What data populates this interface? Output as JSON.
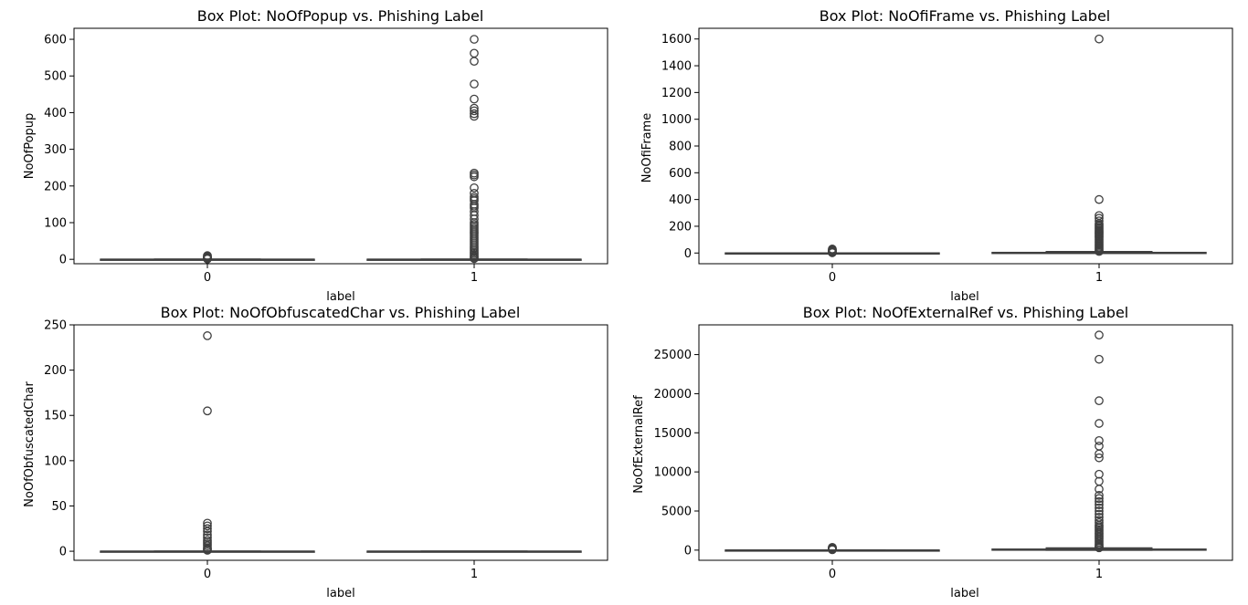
{
  "chart_data": [
    {
      "type": "box",
      "title": "Box Plot: NoOfPopup vs. Phishing Label",
      "xlabel": "label",
      "ylabel": "NoOfPopup",
      "categories": [
        "0",
        "1"
      ],
      "ylim": [
        -12,
        630
      ],
      "yticks": [
        0,
        100,
        200,
        300,
        400,
        500,
        600
      ],
      "boxes": [
        {
          "category": "0",
          "whisker_low": 0,
          "q1": 0,
          "median": 0,
          "q3": 0,
          "whisker_high": 0,
          "outliers": [
            1,
            2,
            3,
            4,
            5,
            6,
            8,
            10
          ]
        },
        {
          "category": "1",
          "whisker_low": 0,
          "q1": 0,
          "median": 0,
          "q3": 0,
          "whisker_high": 0,
          "outliers": [
            2,
            5,
            8,
            12,
            16,
            20,
            25,
            30,
            35,
            40,
            45,
            50,
            55,
            60,
            65,
            70,
            75,
            80,
            85,
            90,
            95,
            100,
            110,
            120,
            130,
            140,
            145,
            150,
            160,
            165,
            170,
            180,
            195,
            225,
            230,
            235,
            390,
            397,
            405,
            412,
            437,
            478,
            540,
            562,
            600
          ]
        }
      ]
    },
    {
      "type": "box",
      "title": "Box Plot: NoOfiFrame vs. Phishing Label",
      "xlabel": "label",
      "ylabel": "NoOfiFrame",
      "categories": [
        "0",
        "1"
      ],
      "ylim": [
        -80,
        1680
      ],
      "yticks": [
        0,
        200,
        400,
        600,
        800,
        1000,
        1200,
        1400,
        1600
      ],
      "boxes": [
        {
          "category": "0",
          "whisker_low": 0,
          "q1": 0,
          "median": 0,
          "q3": 0,
          "whisker_high": 0,
          "outliers": [
            2,
            5,
            8,
            12,
            16,
            20,
            25,
            30
          ]
        },
        {
          "category": "1",
          "whisker_low": 0,
          "q1": 0,
          "median": 2,
          "q3": 4,
          "whisker_high": 10,
          "outliers": [
            12,
            20,
            30,
            40,
            50,
            60,
            70,
            80,
            90,
            100,
            110,
            120,
            130,
            140,
            150,
            160,
            170,
            180,
            190,
            200,
            210,
            220,
            240,
            260,
            280,
            400,
            1600
          ]
        }
      ]
    },
    {
      "type": "box",
      "title": "Box Plot: NoOfObfuscatedChar vs. Phishing Label",
      "xlabel": "label",
      "ylabel": "NoOfObfuscatedChar",
      "categories": [
        "0",
        "1"
      ],
      "ylim": [
        -10,
        250
      ],
      "yticks": [
        0,
        50,
        100,
        150,
        200,
        250
      ],
      "boxes": [
        {
          "category": "0",
          "whisker_low": 0,
          "q1": 0,
          "median": 0,
          "q3": 0,
          "whisker_high": 0,
          "outliers": [
            1,
            2,
            3,
            4,
            6,
            8,
            10,
            12,
            15,
            18,
            22,
            25,
            28,
            31,
            155,
            238
          ]
        },
        {
          "category": "1",
          "whisker_low": 0,
          "q1": 0,
          "median": 0,
          "q3": 0,
          "whisker_high": 0,
          "outliers": []
        }
      ]
    },
    {
      "type": "box",
      "title": "Box Plot: NoOfExternalRef vs. Phishing Label",
      "xlabel": "label",
      "ylabel": "NoOfExternalRef",
      "categories": [
        "0",
        "1"
      ],
      "ylim": [
        -1300,
        28800
      ],
      "yticks": [
        0,
        5000,
        10000,
        15000,
        20000,
        25000
      ],
      "boxes": [
        {
          "category": "0",
          "whisker_low": 0,
          "q1": 0,
          "median": 0,
          "q3": 0,
          "whisker_high": 0,
          "outliers": [
            50,
            100,
            150,
            200,
            250,
            300,
            350
          ]
        },
        {
          "category": "1",
          "whisker_low": 0,
          "q1": 5,
          "median": 40,
          "q3": 120,
          "whisker_high": 280,
          "outliers": [
            300,
            400,
            500,
            650,
            800,
            1000,
            1200,
            1400,
            1600,
            1800,
            2000,
            2200,
            2400,
            2600,
            2800,
            3000,
            3200,
            3500,
            3800,
            4200,
            4600,
            5000,
            5400,
            5800,
            6200,
            6600,
            7000,
            7800,
            8800,
            9700,
            11800,
            12300,
            13300,
            14000,
            16200,
            19100,
            24400,
            27500
          ]
        }
      ]
    }
  ]
}
